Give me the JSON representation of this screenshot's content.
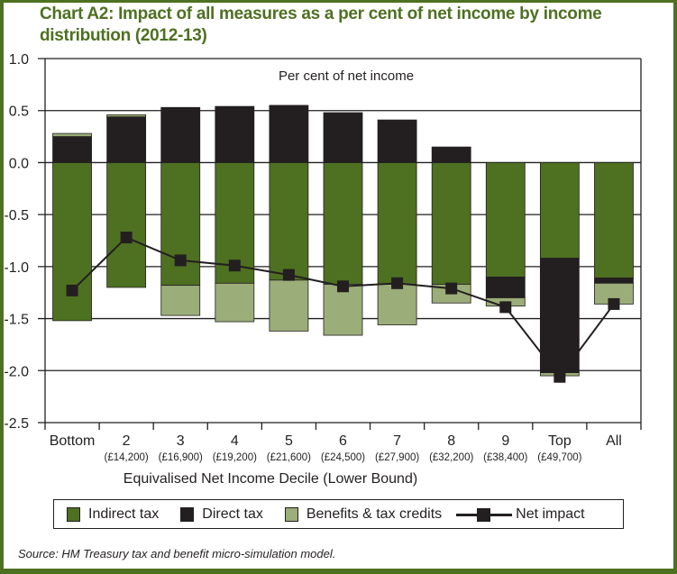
{
  "title": "Chart A2: Impact of all measures as a per cent of net income by income distribution (2012-13)",
  "source": "Source: HM Treasury tax and benefit micro-simulation model.",
  "colors": {
    "frame": "#4e7021",
    "indirect_tax": "#4e7021",
    "direct_tax": "#231f20",
    "benefits": "#9bad78",
    "net_impact": "#231f20",
    "title": "#4e7021"
  },
  "legend": [
    {
      "key": "indirect",
      "label": "Indirect tax"
    },
    {
      "key": "direct",
      "label": "Direct tax"
    },
    {
      "key": "benefits",
      "label": "Benefits & tax credits"
    },
    {
      "key": "net",
      "label": "Net impact"
    }
  ],
  "chart_data": {
    "type": "bar",
    "stacked": true,
    "title": "Chart A2: Impact of all measures as a per cent of net income by income distribution (2012-13)",
    "annotation": "Per cent of net income",
    "xlabel": "Equivalised Net Income Decile (Lower Bound)",
    "ylabel": "",
    "ylim": [
      -2.5,
      1.0
    ],
    "yticks": [
      1.0,
      0.5,
      0.0,
      -0.5,
      -1.0,
      -1.5,
      -2.0,
      -2.5
    ],
    "ytick_labels": [
      "1.0",
      "0.5",
      "0.0",
      "-0.5",
      "-1.0",
      "-1.5",
      "-2.0",
      "-2.5"
    ],
    "grid": true,
    "legend_position": "bottom",
    "categories": [
      "Bottom",
      "2",
      "3",
      "4",
      "5",
      "6",
      "7",
      "8",
      "9",
      "Top",
      "All"
    ],
    "category_sublabels": [
      "",
      "(£14,200)",
      "(£16,900)",
      "(£19,200)",
      "(£21,600)",
      "(£24,500)",
      "(£27,900)",
      "(£32,200)",
      "(£38,400)",
      "(£49,700)",
      ""
    ],
    "series": [
      {
        "name": "Indirect tax",
        "key": "indirect",
        "kind": "bar",
        "values": [
          -1.52,
          -1.2,
          -1.18,
          -1.16,
          -1.13,
          -1.17,
          -1.17,
          -1.17,
          -1.1,
          -0.92,
          -1.11
        ]
      },
      {
        "name": "Direct tax",
        "key": "direct",
        "kind": "bar",
        "values": [
          0.25,
          0.44,
          0.53,
          0.54,
          0.55,
          0.48,
          0.41,
          0.15,
          -0.2,
          -1.1,
          -0.05
        ]
      },
      {
        "name": "Benefits & tax credits",
        "key": "benefits",
        "kind": "bar",
        "values": [
          0.03,
          0.02,
          -0.29,
          -0.37,
          -0.49,
          -0.49,
          -0.39,
          -0.18,
          -0.08,
          -0.03,
          -0.2
        ]
      },
      {
        "name": "Net impact",
        "key": "net",
        "kind": "line",
        "values": [
          -1.23,
          -0.72,
          -0.94,
          -0.99,
          -1.08,
          -1.19,
          -1.16,
          -1.21,
          -1.39,
          -2.06,
          -1.36
        ]
      }
    ]
  }
}
